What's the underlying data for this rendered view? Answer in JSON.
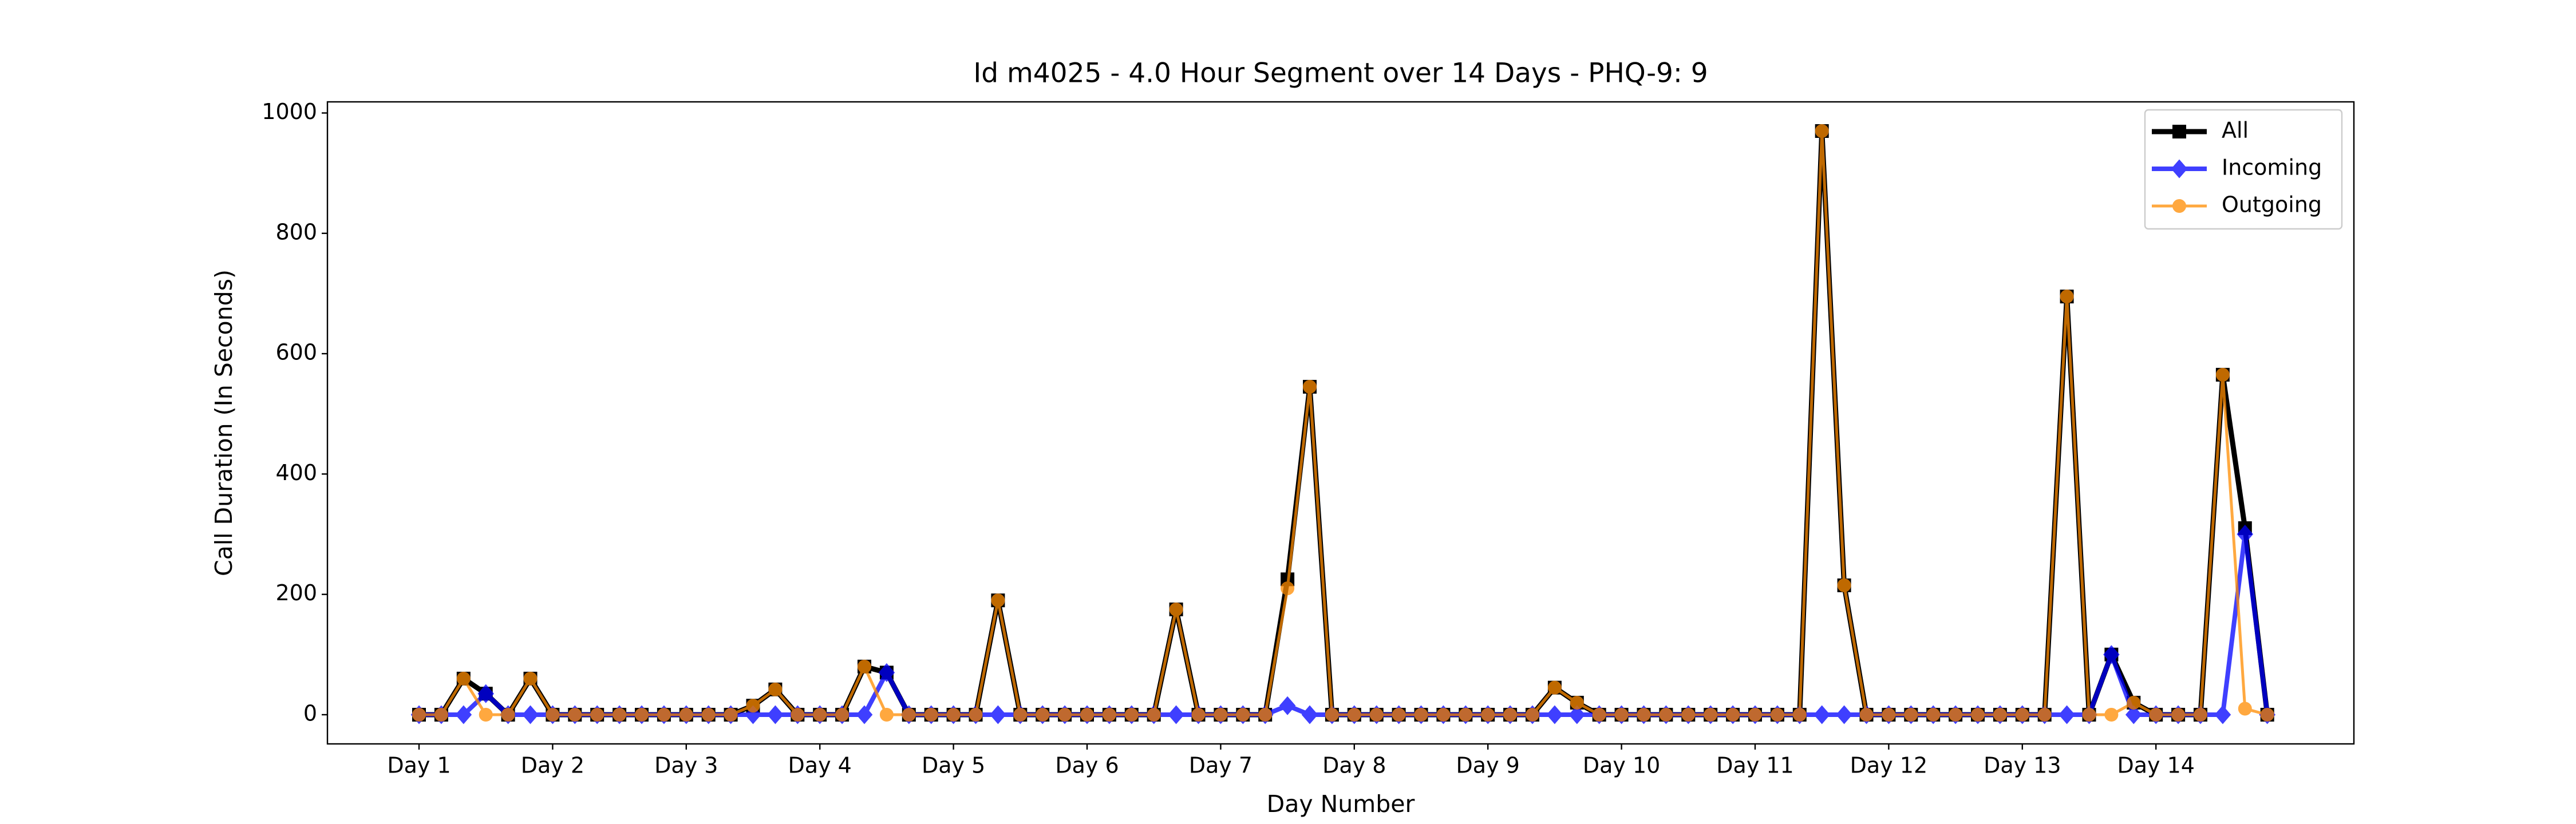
{
  "chart_data": {
    "type": "line",
    "title": "Id m4025 - 4.0 Hour Segment over 14 Days - PHQ-9: 9",
    "x_label": "Day Number",
    "y_label": "Call Duration (In Seconds)",
    "categories": [
      "Day 1",
      null,
      null,
      null,
      null,
      null,
      "Day 2",
      null,
      null,
      null,
      null,
      null,
      "Day 3",
      null,
      null,
      null,
      null,
      null,
      "Day 4",
      null,
      null,
      null,
      null,
      null,
      "Day 5",
      null,
      null,
      null,
      null,
      null,
      "Day 6",
      null,
      null,
      null,
      null,
      null,
      "Day 7",
      null,
      null,
      null,
      null,
      null,
      "Day 8",
      null,
      null,
      null,
      null,
      null,
      "Day 9",
      null,
      null,
      null,
      null,
      null,
      "Day 10",
      null,
      null,
      null,
      null,
      null,
      "Day 11",
      null,
      null,
      null,
      null,
      null,
      "Day 12",
      null,
      null,
      null,
      null,
      null,
      "Day 13",
      null,
      null,
      null,
      null,
      null,
      "Day 14",
      null,
      null,
      null,
      null,
      null
    ],
    "series": [
      {
        "name": "All",
        "color": "#000000",
        "marker": "square",
        "values": [
          0,
          0,
          60,
          35,
          0,
          60,
          0,
          0,
          0,
          0,
          0,
          0,
          0,
          0,
          0,
          15,
          42,
          0,
          0,
          0,
          80,
          70,
          0,
          0,
          0,
          0,
          190,
          0,
          0,
          0,
          0,
          0,
          0,
          0,
          175,
          0,
          0,
          0,
          0,
          225,
          545,
          0,
          0,
          0,
          0,
          0,
          0,
          0,
          0,
          0,
          0,
          45,
          20,
          0,
          0,
          0,
          0,
          0,
          0,
          0,
          0,
          0,
          0,
          970,
          215,
          0,
          0,
          0,
          0,
          0,
          0,
          0,
          0,
          0,
          695,
          0,
          100,
          20,
          0,
          0,
          0,
          565,
          310,
          0
        ]
      },
      {
        "name": "Incoming",
        "color": "#0000ff",
        "marker": "diamond",
        "values": [
          0,
          0,
          0,
          35,
          0,
          0,
          0,
          0,
          0,
          0,
          0,
          0,
          0,
          0,
          0,
          0,
          0,
          0,
          0,
          0,
          0,
          70,
          0,
          0,
          0,
          0,
          0,
          0,
          0,
          0,
          0,
          0,
          0,
          0,
          0,
          0,
          0,
          0,
          0,
          15,
          0,
          0,
          0,
          0,
          0,
          0,
          0,
          0,
          0,
          0,
          0,
          0,
          0,
          0,
          0,
          0,
          0,
          0,
          0,
          0,
          0,
          0,
          0,
          0,
          0,
          0,
          0,
          0,
          0,
          0,
          0,
          0,
          0,
          0,
          0,
          0,
          100,
          0,
          0,
          0,
          0,
          0,
          300,
          0
        ]
      },
      {
        "name": "Outgoing",
        "color": "#ff8c00",
        "marker": "circle",
        "values": [
          0,
          0,
          60,
          0,
          0,
          60,
          0,
          0,
          0,
          0,
          0,
          0,
          0,
          0,
          0,
          15,
          42,
          0,
          0,
          0,
          80,
          0,
          0,
          0,
          0,
          0,
          190,
          0,
          0,
          0,
          0,
          0,
          0,
          0,
          175,
          0,
          0,
          0,
          0,
          210,
          545,
          0,
          0,
          0,
          0,
          0,
          0,
          0,
          0,
          0,
          0,
          45,
          20,
          0,
          0,
          0,
          0,
          0,
          0,
          0,
          0,
          0,
          0,
          970,
          215,
          0,
          0,
          0,
          0,
          0,
          0,
          0,
          0,
          0,
          695,
          0,
          0,
          20,
          0,
          0,
          0,
          565,
          10,
          0
        ]
      }
    ],
    "ylim": [
      -48.5,
      1018.5
    ],
    "yticks": [
      0,
      200,
      400,
      600,
      800,
      1000
    ],
    "grid": false,
    "legend": "upper right"
  }
}
